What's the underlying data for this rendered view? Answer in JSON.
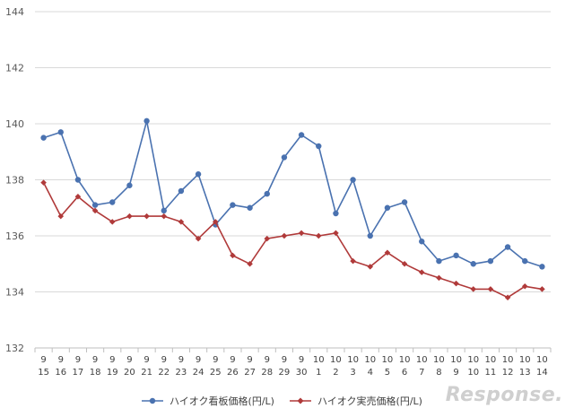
{
  "chart_data": {
    "type": "line",
    "title": "",
    "xlabel": "",
    "ylabel": "",
    "ylim": [
      132,
      144
    ],
    "yticks": [
      132,
      134,
      136,
      138,
      140,
      142,
      144
    ],
    "grid": true,
    "legend": "bottom-center",
    "categories": [
      {
        "month": "9",
        "day": "15"
      },
      {
        "month": "9",
        "day": "16"
      },
      {
        "month": "9",
        "day": "17"
      },
      {
        "month": "9",
        "day": "18"
      },
      {
        "month": "9",
        "day": "19"
      },
      {
        "month": "9",
        "day": "20"
      },
      {
        "month": "9",
        "day": "21"
      },
      {
        "month": "9",
        "day": "22"
      },
      {
        "month": "9",
        "day": "23"
      },
      {
        "month": "9",
        "day": "24"
      },
      {
        "month": "9",
        "day": "25"
      },
      {
        "month": "9",
        "day": "26"
      },
      {
        "month": "9",
        "day": "27"
      },
      {
        "month": "9",
        "day": "28"
      },
      {
        "month": "9",
        "day": "29"
      },
      {
        "month": "9",
        "day": "30"
      },
      {
        "month": "10",
        "day": "1"
      },
      {
        "month": "10",
        "day": "2"
      },
      {
        "month": "10",
        "day": "3"
      },
      {
        "month": "10",
        "day": "4"
      },
      {
        "month": "10",
        "day": "5"
      },
      {
        "month": "10",
        "day": "6"
      },
      {
        "month": "10",
        "day": "7"
      },
      {
        "month": "10",
        "day": "8"
      },
      {
        "month": "10",
        "day": "9"
      },
      {
        "month": "10",
        "day": "10"
      },
      {
        "month": "10",
        "day": "11"
      },
      {
        "month": "10",
        "day": "12"
      },
      {
        "month": "10",
        "day": "13"
      },
      {
        "month": "10",
        "day": "14"
      }
    ],
    "series": [
      {
        "name": "ハイオク看板価格(円/L)",
        "color": "#4a72b0",
        "marker": "circle",
        "values": [
          139.5,
          139.7,
          138.0,
          137.1,
          137.2,
          137.8,
          140.1,
          136.9,
          137.6,
          138.2,
          136.4,
          137.1,
          137.0,
          137.5,
          138.8,
          139.6,
          139.2,
          136.8,
          138.0,
          136.0,
          137.0,
          137.2,
          135.8,
          135.1,
          135.3,
          135.0,
          135.1,
          135.6,
          135.1,
          134.9
        ]
      },
      {
        "name": "ハイオク実売価格(円/L)",
        "color": "#b03a3a",
        "marker": "diamond",
        "values": [
          137.9,
          136.7,
          137.4,
          136.9,
          136.5,
          136.7,
          136.7,
          136.7,
          136.5,
          135.9,
          136.5,
          135.3,
          135.0,
          135.9,
          136.0,
          136.1,
          136.0,
          136.1,
          135.1,
          134.9,
          135.4,
          135.0,
          134.7,
          134.5,
          134.3,
          134.1,
          134.1,
          133.8,
          134.2,
          134.1
        ]
      }
    ]
  },
  "watermark": "Response."
}
